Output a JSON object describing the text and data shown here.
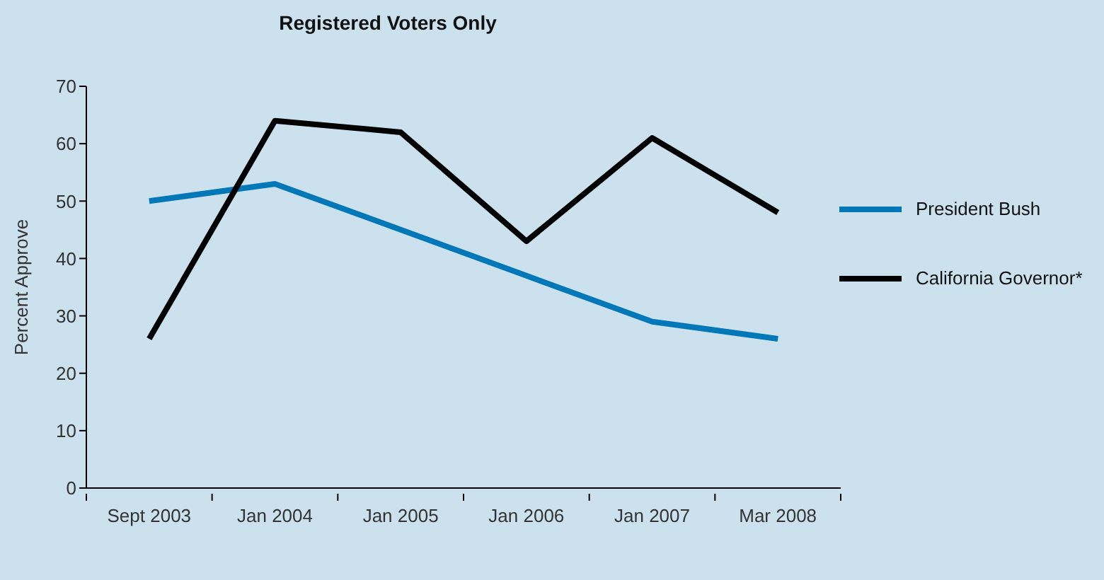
{
  "chart_data": {
    "type": "line",
    "title": "Registered Voters Only",
    "ylabel": "Percent Approve",
    "categories": [
      "Sept 2003",
      "Jan 2004",
      "Jan 2005",
      "Jan 2006",
      "Jan 2007",
      "Mar 2008"
    ],
    "series": [
      {
        "name": "President Bush",
        "color": "#0077b6",
        "values": [
          50,
          53,
          45,
          37,
          29,
          26
        ]
      },
      {
        "name": "California Governor*",
        "color": "#000000",
        "values": [
          26,
          64,
          62,
          43,
          61,
          48
        ]
      }
    ],
    "ylim": [
      0,
      70
    ],
    "yticks": [
      0,
      10,
      20,
      30,
      40,
      50,
      60,
      70
    ],
    "grid": false,
    "legend": "right",
    "marker": "none",
    "line_style": "solid"
  }
}
